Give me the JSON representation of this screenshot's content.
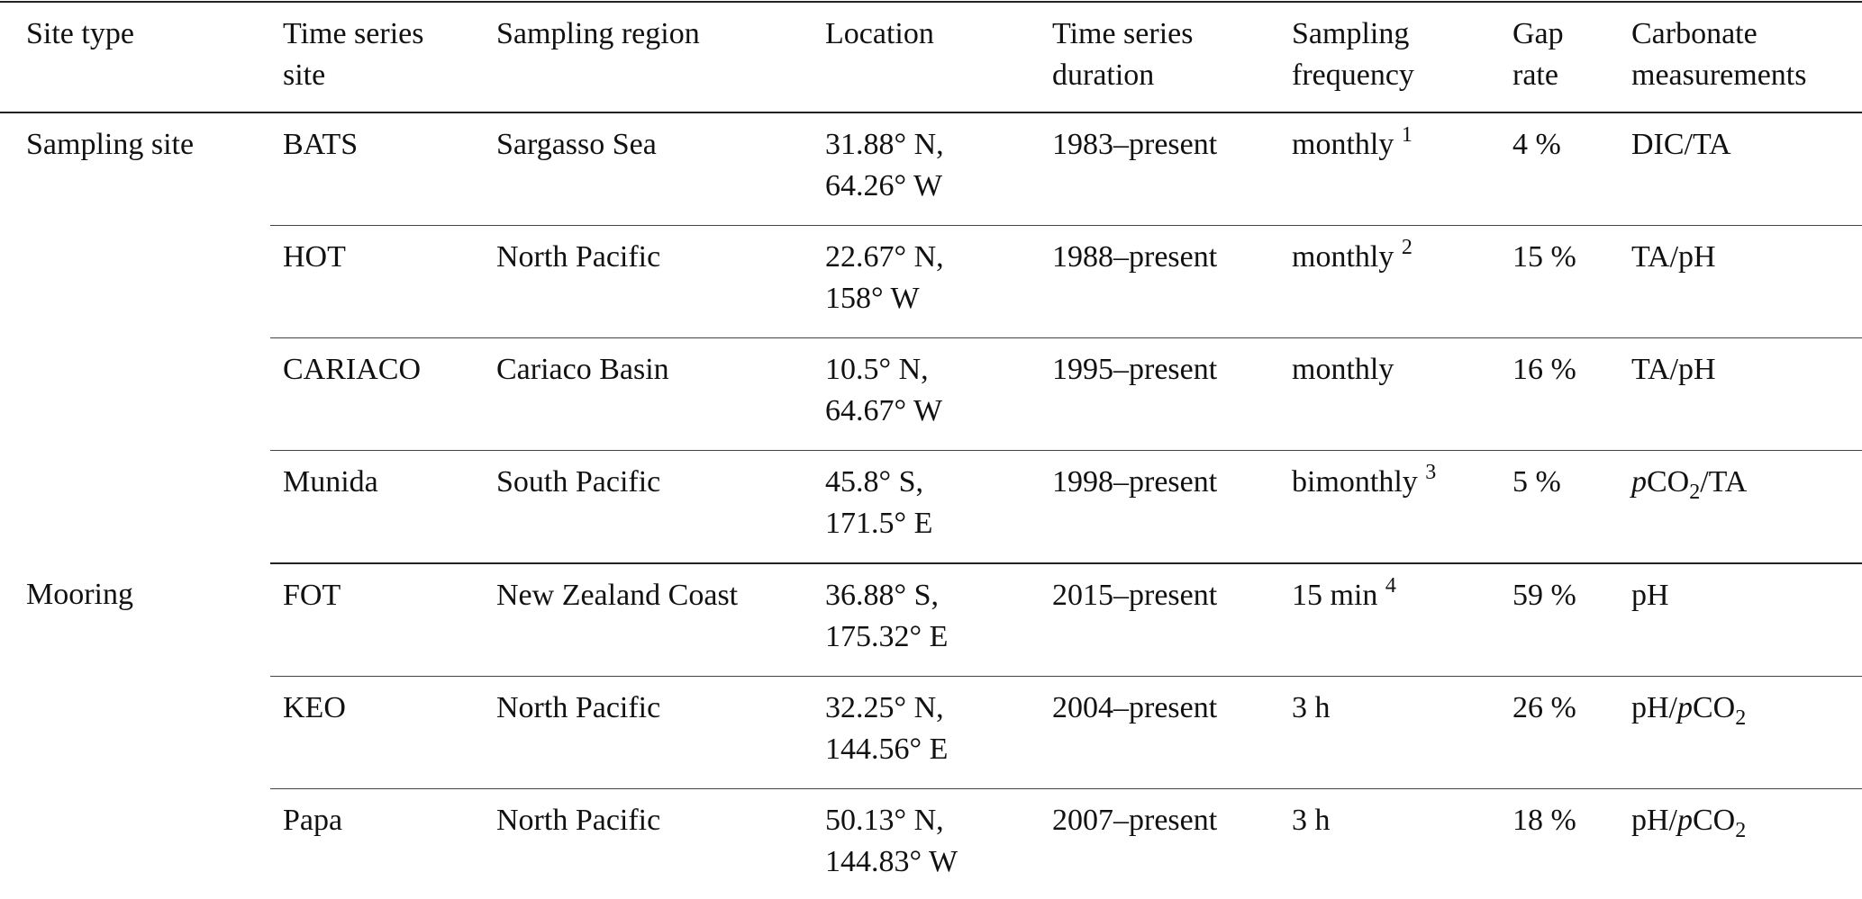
{
  "table": {
    "header": [
      [
        "Site type"
      ],
      [
        "Time series",
        "site"
      ],
      [
        "Sampling region"
      ],
      [
        "Location"
      ],
      [
        "Time series",
        "duration"
      ],
      [
        "Sampling",
        "frequency"
      ],
      [
        "Gap",
        "rate"
      ],
      [
        "Carbonate",
        "measurements"
      ]
    ],
    "groups": [
      {
        "site_type": "Sampling site",
        "rows": [
          {
            "site": "BATS",
            "region": "Sargasso Sea",
            "location": [
              "31.88° N,",
              "64.26° W"
            ],
            "duration": "1983–present",
            "frequency": "monthly",
            "note": "1",
            "gap": "4 %",
            "measurements": [
              [
                "DIC/TA",
                "normal"
              ]
            ]
          },
          {
            "site": "HOT",
            "region": "North Pacific",
            "location": [
              "22.67° N,",
              "158° W"
            ],
            "duration": "1988–present",
            "frequency": "monthly",
            "note": "2",
            "gap": "15 %",
            "measurements": [
              [
                "TA/pH",
                "normal"
              ]
            ]
          },
          {
            "site": "CARIACO",
            "region": "Cariaco Basin",
            "location": [
              "10.5° N,",
              "64.67° W"
            ],
            "duration": "1995–present",
            "frequency": "monthly",
            "gap": "16 %",
            "measurements": [
              [
                "TA/pH",
                "normal"
              ]
            ]
          },
          {
            "site": "Munida",
            "region": "South Pacific",
            "location": [
              "45.8° S,",
              "171.5° E"
            ],
            "duration": "1998–present",
            "frequency": "bimonthly",
            "note": "3",
            "gap": "5 %",
            "measurements": [
              [
                "p",
                "italic"
              ],
              [
                "CO",
                "normal"
              ],
              [
                "2",
                "sub"
              ],
              [
                "/TA",
                "normal"
              ]
            ]
          }
        ]
      },
      {
        "site_type": "Mooring",
        "rows": [
          {
            "site": "FOT",
            "region": "New Zealand Coast",
            "location": [
              "36.88° S,",
              "175.32° E"
            ],
            "duration": "2015–present",
            "frequency": "15 min",
            "note": "4",
            "gap": "59 %",
            "measurements": [
              [
                "pH",
                "normal"
              ]
            ]
          },
          {
            "site": "KEO",
            "region": "North Pacific",
            "location": [
              "32.25° N,",
              "144.56° E"
            ],
            "duration": "2004–present",
            "frequency": "3 h",
            "gap": "26 %",
            "measurements": [
              [
                "pH/",
                "normal"
              ],
              [
                "p",
                "italic"
              ],
              [
                "CO",
                "normal"
              ],
              [
                "2",
                "sub"
              ]
            ]
          },
          {
            "site": "Papa",
            "region": "North Pacific",
            "location": [
              "50.13° N,",
              "144.83° W"
            ],
            "duration": "2007–present",
            "frequency": "3 h",
            "gap": "18 %",
            "measurements": [
              [
                "pH/",
                "normal"
              ],
              [
                "p",
                "italic"
              ],
              [
                "CO",
                "normal"
              ],
              [
                "2",
                "sub"
              ]
            ]
          }
        ]
      }
    ]
  }
}
